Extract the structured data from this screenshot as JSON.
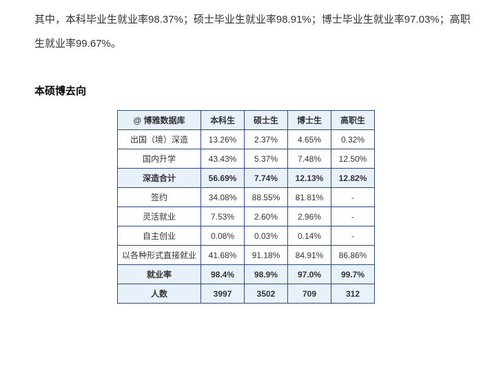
{
  "intro": {
    "text": "其中，本科毕业生就业率98.37%；硕士毕业生就业率98.91%；博士毕业生就业率97.03%；高职生就业率99.67%。"
  },
  "heading": "本硕博去向",
  "table": {
    "header_label": "@ 博雅数据库",
    "columns": [
      "本科生",
      "硕士生",
      "博士生",
      "高职生"
    ],
    "rows": [
      {
        "label": "出国（境）深造",
        "cells": [
          "13.26%",
          "2.37%",
          "4.65%",
          "0.32%"
        ],
        "bold": false
      },
      {
        "label": "国内升学",
        "cells": [
          "43.43%",
          "5.37%",
          "7.48%",
          "12.50%"
        ],
        "bold": false
      },
      {
        "label": "深造合计",
        "cells": [
          "56.69%",
          "7.74%",
          "12.13%",
          "12.82%"
        ],
        "bold": true
      },
      {
        "label": "签约",
        "cells": [
          "34.08%",
          "88.55%",
          "81.81%",
          "-"
        ],
        "bold": false
      },
      {
        "label": "灵活就业",
        "cells": [
          "7.53%",
          "2.60%",
          "2.96%",
          "-"
        ],
        "bold": false
      },
      {
        "label": "自主创业",
        "cells": [
          "0.08%",
          "0.03%",
          "0.14%",
          "-"
        ],
        "bold": false
      },
      {
        "label": "以各种形式直接就业",
        "cells": [
          "41.68%",
          "91.18%",
          "84.91%",
          "86.86%"
        ],
        "bold": false
      },
      {
        "label": "就业率",
        "cells": [
          "98.4%",
          "98.9%",
          "97.0%",
          "99.7%"
        ],
        "bold": true
      },
      {
        "label": "人数",
        "cells": [
          "3997",
          "3502",
          "709",
          "312"
        ],
        "bold": true
      }
    ],
    "border_color": "#2a4a7a",
    "header_bg": "#e8f0fa",
    "bold_row_bg": "#e8f0fa"
  }
}
